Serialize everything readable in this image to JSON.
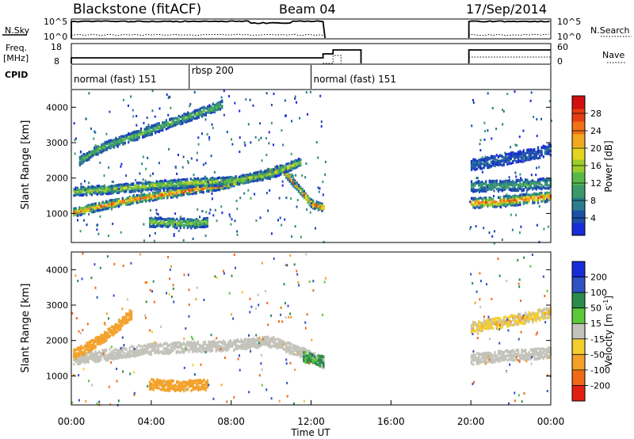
{
  "header": {
    "radar": "Blackstone (fitACF)",
    "beam": "Beam 04",
    "date": "17/Sep/2014"
  },
  "top_panels": {
    "nsky_label": "N.Sky",
    "nsearch_label": "N.Search",
    "nsky_ticks": [
      "10^5",
      "10^0"
    ],
    "nsearch_ticks": [
      "10^5",
      "10^0"
    ],
    "freq_label": "Freq.",
    "freq_unit": "[MHz]",
    "freq_ticks": [
      "18",
      "8"
    ],
    "nave_label": "Nave",
    "nave_ticks": [
      "60",
      "0"
    ],
    "cpid_label": "CPID",
    "cpid_segments": [
      {
        "label": "normal (fast) 151",
        "start_h": 0.0,
        "end_h": 5.9
      },
      {
        "label": "rbsp 200",
        "start_h": 5.9,
        "end_h": 12.0
      },
      {
        "label": "normal (fast) 151",
        "start_h": 12.0,
        "end_h": 24.0
      }
    ]
  },
  "power_legend": {
    "title": "Power [dB]",
    "ticks": [
      "4",
      "8",
      "12",
      "16",
      "20",
      "24",
      "28"
    ],
    "colors": [
      "#1a2bd8",
      "#1c4fa8",
      "#2b7d8e",
      "#3a9a6a",
      "#58b94a",
      "#9ccc2c",
      "#e3d41e",
      "#f1a81e",
      "#ef7216",
      "#e53d12",
      "#d01010"
    ]
  },
  "velocity_legend": {
    "title": "Velocity [m s",
    "title_sup": "-1",
    "title_end": "]",
    "ticks": [
      "200",
      "100",
      "50",
      "15",
      "-15",
      "-50",
      "-100",
      "-200"
    ],
    "colors": [
      "#1a2bd8",
      "#2f52c0",
      "#2c8a4a",
      "#5cc83a",
      "#c3c3bb",
      "#f4ce2c",
      "#f3a12a",
      "#ef6a16",
      "#e02010"
    ]
  },
  "chart_data": [
    {
      "type": "heatmap",
      "title": "",
      "xlabel": "",
      "ylabel": "Slant Range [km]",
      "xlim": [
        0,
        24
      ],
      "ylim": [
        180,
        4500
      ],
      "y_ticks": [
        1000,
        2000,
        3000,
        4000
      ],
      "quantity": "Power [dB]",
      "data_gaps_h": [
        [
          12.7,
          19.9
        ]
      ],
      "bands": [
        {
          "t": [
            0.0,
            1.5,
            3.0,
            4.5,
            6.0,
            7.5,
            9.0,
            10.5,
            12.0,
            12.6
          ],
          "r": [
            1050,
            1250,
            1420,
            1560,
            1700,
            1820,
            2050,
            2300,
            1300,
            1200
          ],
          "power_dB": 27
        },
        {
          "t": [
            0.0,
            2.0,
            4.0,
            6.0,
            8.0,
            10.0,
            11.5
          ],
          "r": [
            1650,
            1720,
            1820,
            1900,
            1950,
            2150,
            2500
          ],
          "power_dB": 18
        },
        {
          "t": [
            0.3,
            1.5,
            3.0,
            4.5,
            6.0,
            7.5
          ],
          "r": [
            2500,
            2900,
            3200,
            3500,
            3800,
            4100
          ],
          "power_dB": 14
        },
        {
          "t": [
            3.8,
            4.5,
            5.2,
            6.0,
            6.8
          ],
          "r": [
            800,
            780,
            760,
            760,
            790
          ],
          "power_dB": 16
        },
        {
          "t": [
            19.9,
            21.0,
            22.0,
            23.0,
            24.0
          ],
          "r": [
            1330,
            1350,
            1400,
            1460,
            1520
          ],
          "power_dB": 27
        },
        {
          "t": [
            19.9,
            21.5,
            23.0,
            24.0
          ],
          "r": [
            1800,
            1820,
            1850,
            1900
          ],
          "power_dB": 12
        },
        {
          "t": [
            19.9,
            21.5,
            23.0,
            24.0
          ],
          "r": [
            2400,
            2550,
            2700,
            2850
          ],
          "power_dB": 6
        }
      ]
    },
    {
      "type": "heatmap",
      "title": "",
      "xlabel": "Time UT",
      "ylabel": "Slant Range [km]",
      "xlim": [
        0,
        24
      ],
      "ylim": [
        180,
        4500
      ],
      "x_ticks": [
        "00:00",
        "04:00",
        "08:00",
        "12:00",
        "16:00",
        "20:00",
        "00:00"
      ],
      "y_ticks": [
        1000,
        2000,
        3000,
        4000
      ],
      "quantity": "Velocity [m s-1]",
      "data_gaps_h": [
        [
          12.7,
          19.9
        ]
      ],
      "bands": [
        {
          "t": [
            0.0,
            2.0,
            4.0,
            6.0,
            8.0,
            10.0,
            11.5,
            12.6
          ],
          "r": [
            1500,
            1650,
            1800,
            1850,
            1900,
            2000,
            1700,
            1400
          ],
          "velocity_ms": 0
        },
        {
          "t": [
            0.0,
            1.0,
            2.0,
            3.0
          ],
          "r": [
            1600,
            1900,
            2300,
            2800
          ],
          "velocity_ms": -50
        },
        {
          "t": [
            3.8,
            4.5,
            5.2,
            6.0,
            6.8
          ],
          "r": [
            800,
            780,
            760,
            760,
            790
          ],
          "velocity_ms": -50
        },
        {
          "t": [
            11.5,
            12.0,
            12.6
          ],
          "r": [
            1600,
            1500,
            1450
          ],
          "velocity_ms": 40
        },
        {
          "t": [
            19.9,
            21.5,
            23.0,
            24.0
          ],
          "r": [
            1500,
            1600,
            1650,
            1700
          ],
          "velocity_ms": 0
        },
        {
          "t": [
            19.9,
            21.5,
            23.0,
            24.0
          ],
          "r": [
            2400,
            2550,
            2700,
            2850
          ],
          "velocity_ms": -20
        }
      ]
    }
  ]
}
